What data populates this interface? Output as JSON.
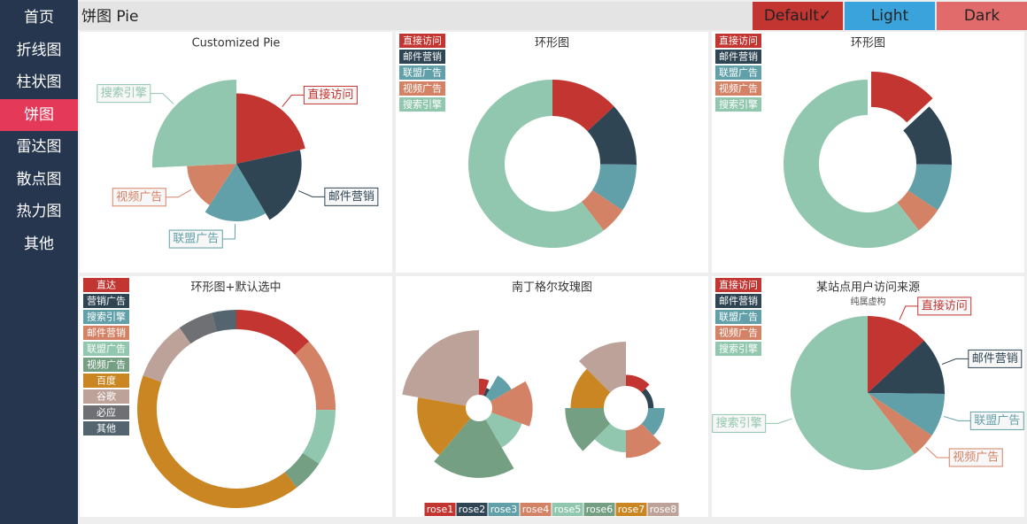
{
  "sidebar": {
    "items": [
      "首页",
      "折线图",
      "柱状图",
      "饼图",
      "雷达图",
      "散点图",
      "热力图",
      "其他"
    ],
    "active": 3
  },
  "header": {
    "title": "饼图 Pie",
    "themes": [
      {
        "label": "Default✓",
        "color": "#c23531"
      },
      {
        "label": "Light",
        "color": "#3ba3dc"
      },
      {
        "label": "Dark",
        "color": "#e06b6a"
      }
    ]
  },
  "chart_data": [
    {
      "type": "pie",
      "title": "Customized Pie",
      "categories": [
        "直接访问",
        "邮件营销",
        "联盟广告",
        "视频广告",
        "搜索引擎"
      ],
      "values": [
        335,
        310,
        274,
        235,
        400
      ],
      "colors": [
        "#c23531",
        "#2f4554",
        "#61a0a8",
        "#d48265",
        "#91c7ae"
      ],
      "rose": "radius",
      "labels": true
    },
    {
      "type": "pie",
      "title": "环形图",
      "categories": [
        "直接访问",
        "邮件营销",
        "联盟广告",
        "视频广告",
        "搜索引擎"
      ],
      "values": [
        335,
        310,
        234,
        135,
        1548
      ],
      "colors": [
        "#c23531",
        "#2f4554",
        "#61a0a8",
        "#d48265",
        "#91c7ae"
      ],
      "donut": true,
      "legend": "top-left"
    },
    {
      "type": "pie",
      "title": "环形图",
      "categories": [
        "直接访问",
        "邮件营销",
        "联盟广告",
        "视频广告",
        "搜索引擎"
      ],
      "values": [
        335,
        310,
        234,
        135,
        1548
      ],
      "colors": [
        "#c23531",
        "#2f4554",
        "#61a0a8",
        "#d48265",
        "#91c7ae"
      ],
      "donut": true,
      "selected": 0,
      "legend": "top-left"
    },
    {
      "type": "pie",
      "title": "环形图+默认选中",
      "categories": [
        "直达",
        "营销广告",
        "搜索引擎",
        "邮件营销",
        "联盟广告",
        "视频广告",
        "百度",
        "谷歌",
        "必应",
        "其他"
      ],
      "values": [
        335,
        null,
        null,
        310,
        234,
        135,
        1048,
        251,
        147,
        102
      ],
      "colors": [
        "#c23531",
        "#2f4554",
        "#61a0a8",
        "#d48265",
        "#91c7ae",
        "#749f83",
        "#ca8622",
        "#bda29a",
        "#6e7074",
        "#546570"
      ],
      "donut": true,
      "legend": "top-left"
    },
    {
      "type": "pie",
      "title": "南丁格尔玫瑰图",
      "categories": [
        "rose1",
        "rose2",
        "rose3",
        "rose4",
        "rose5",
        "rose6",
        "rose7",
        "rose8"
      ],
      "colors": [
        "#c23531",
        "#2f4554",
        "#61a0a8",
        "#d48265",
        "#91c7ae",
        "#749f83",
        "#ca8622",
        "#bda29a"
      ],
      "series": [
        {
          "values": [
            10,
            5,
            15,
            25,
            20,
            35,
            30,
            40
          ],
          "rose": "radius"
        },
        {
          "values": [
            10,
            5,
            15,
            25,
            20,
            35,
            30,
            40
          ],
          "rose": "area"
        }
      ],
      "legend": "bottom"
    },
    {
      "type": "pie",
      "title": "某站点用户访问来源",
      "subtitle": "纯属虚构",
      "categories": [
        "直接访问",
        "邮件营销",
        "联盟广告",
        "视频广告",
        "搜索引擎"
      ],
      "values": [
        335,
        310,
        234,
        135,
        1548
      ],
      "colors": [
        "#c23531",
        "#2f4554",
        "#61a0a8",
        "#d48265",
        "#91c7ae"
      ],
      "labels": true,
      "legend": "top-left"
    }
  ]
}
